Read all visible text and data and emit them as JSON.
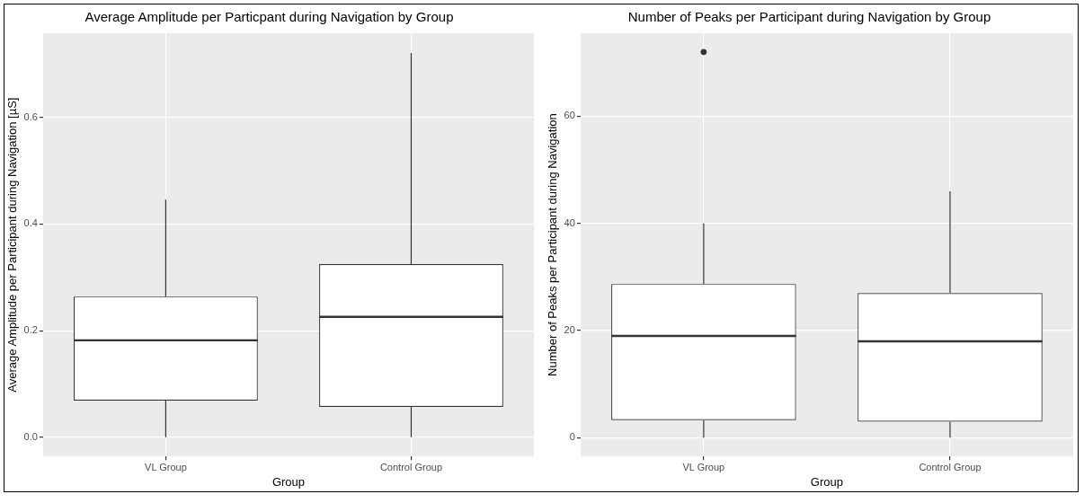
{
  "chart_data": [
    {
      "type": "box",
      "title": "Average Amplitude per Particpant during Navigation by Group",
      "xlabel": "Group",
      "ylabel": "Average Amplitude per Participant during Navigation [µS]",
      "categories": [
        "VL Group",
        "Control Group"
      ],
      "boxes": [
        {
          "low": 0,
          "q1": 0.069,
          "median": 0.182,
          "q3": 0.264,
          "high": 0.446
        },
        {
          "low": 0,
          "q1": 0.057,
          "median": 0.226,
          "q3": 0.325,
          "high": 0.721
        }
      ],
      "ylim": [
        -0.036,
        0.758
      ],
      "yticks": [
        {
          "value": 0,
          "label": "0.0"
        },
        {
          "value": 0.2,
          "label": "0.2"
        },
        {
          "value": 0.4,
          "label": "0.4"
        },
        {
          "value": 0.6,
          "label": "0.6"
        }
      ],
      "grid": true
    },
    {
      "type": "box",
      "title": "Number of Peaks per Participant during Navigation by Group",
      "xlabel": "Group",
      "ylabel": "Number of Peaks per Participant during Navigation",
      "categories": [
        "VL Group",
        "Control Group"
      ],
      "boxes": [
        {
          "low": 0,
          "q1": 3.3,
          "median": 19,
          "q3": 28.7,
          "high": 40,
          "outliers": [
            72
          ]
        },
        {
          "low": 0,
          "q1": 3,
          "median": 18,
          "q3": 27,
          "high": 46
        }
      ],
      "ylim": [
        -3.5,
        75.5
      ],
      "yticks": [
        0,
        20,
        40,
        60
      ],
      "grid": true
    }
  ]
}
